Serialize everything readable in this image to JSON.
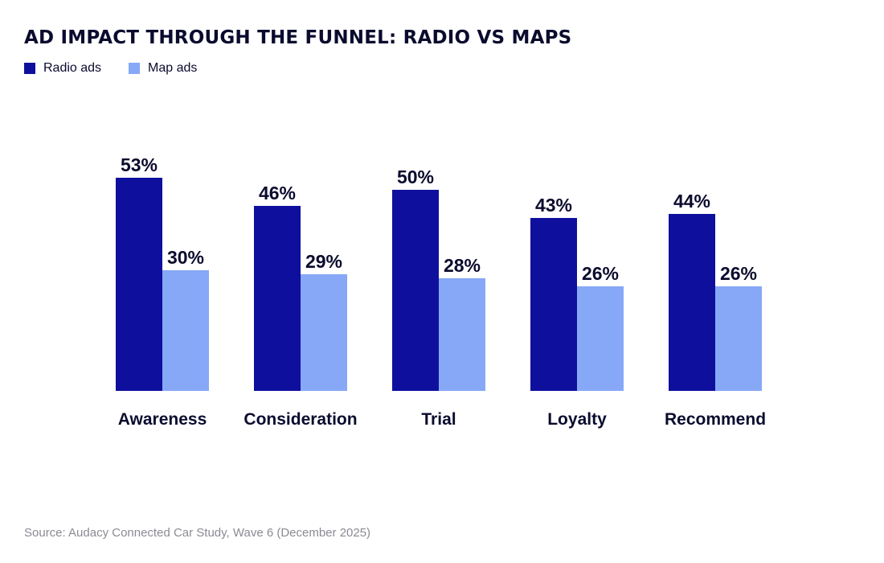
{
  "colors": {
    "radio": "#0f0f9e",
    "map": "#86a8f7",
    "text": "#0b0b2e",
    "source": "#8a8a94"
  },
  "source": "Source: Audacy Connected Car Study, Wave 6 (December 2025)",
  "chart_data": {
    "type": "bar",
    "title": "AD IMPACT THROUGH THE FUNNEL: RADIO VS MAPS",
    "xlabel": "",
    "ylabel": "",
    "ylim": [
      0,
      60
    ],
    "grid": false,
    "legend_position": "top-left",
    "value_suffix": "%",
    "categories": [
      "Awareness",
      "Consideration",
      "Trial",
      "Loyalty",
      "Recommend"
    ],
    "series": [
      {
        "name": "Radio ads",
        "color_key": "radio",
        "values": [
          53,
          46,
          50,
          43,
          44
        ],
        "labels": [
          "53%",
          "46%",
          "50%",
          "43%",
          "44%"
        ]
      },
      {
        "name": "Map ads",
        "color_key": "map",
        "values": [
          30,
          29,
          28,
          26,
          26
        ],
        "labels": [
          "30%",
          "29%",
          "28%",
          "26%",
          "26%"
        ]
      }
    ]
  }
}
